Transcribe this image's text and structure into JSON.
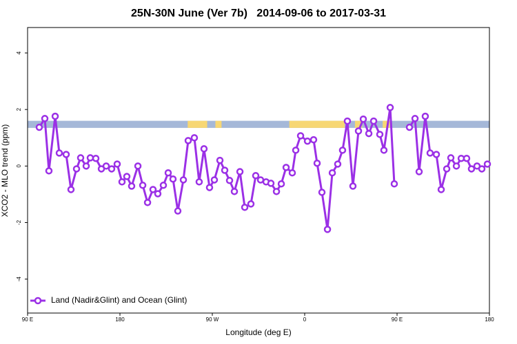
{
  "chart_data": {
    "type": "line",
    "title": "25N-30N June (Ver 7b)   2014-09-06 to 2017-03-31",
    "xlabel": "Longitude (deg E)",
    "ylabel": "XCO2 - MLO trend (ppm)",
    "xlim": [
      90,
      540
    ],
    "ylim": [
      -5.2,
      4.9
    ],
    "xticks": [
      {
        "value": 90,
        "label": "90 E"
      },
      180,
      {
        "value": 270,
        "label": "90 W"
      },
      {
        "value": 360,
        "label": "0"
      },
      {
        "value": 450,
        "label": "90 E"
      },
      {
        "value": 540,
        "label": "180"
      }
    ],
    "yticks": [
      -4,
      -2,
      0,
      2,
      4
    ],
    "legend": "bottom-left",
    "band": {
      "y": [
        1.35,
        1.6
      ],
      "color": "#a5b8d8",
      "highlight_color": "#f7d774",
      "highlights": [
        [
          246,
          265
        ],
        [
          273,
          279
        ],
        [
          345,
          399
        ],
        [
          409,
          416
        ],
        [
          436,
          443
        ]
      ]
    },
    "x": [
      101.4,
      106.8,
      110.8,
      116.9,
      120.9,
      127.6,
      132.3,
      137.7,
      141.7,
      147.1,
      151.1,
      156.5,
      161.9,
      166.6,
      171.9,
      177.3,
      182.0,
      186.7,
      191.4,
      197.5,
      202.2,
      206.9,
      212.2,
      216.9,
      222.3,
      227.0,
      231.7,
      236.4,
      241.8,
      246.5,
      252.5,
      257.2,
      261.9,
      267.3,
      272.0,
      277.4,
      282.1,
      286.8,
      291.5,
      296.9,
      301.6,
      307.6,
      312.3,
      317.0,
      322.4,
      327.1,
      332.5,
      337.2,
      341.9,
      347.9,
      351.3,
      356.0,
      362.7,
      368.7,
      372.1,
      376.8,
      382.2,
      386.9,
      392.2,
      396.9,
      401.6,
      407.0,
      412.4,
      417.1,
      422.5,
      427.2,
      433.2,
      437.2,
      443.3,
      447.3,
      454.7,
      462.1,
      467.5,
      471.5,
      477.5,
      482.2,
      488.3,
      493.0,
      498.4,
      502.4,
      507.8,
      512.5,
      517.8,
      522.5,
      527.9,
      532.6,
      538.0
    ],
    "series": [
      {
        "name": "Land (Nadir&Glint) and Ocean (Glint)",
        "color": "#9b30e6",
        "values": [
          1.37,
          1.68,
          -0.17,
          1.76,
          0.46,
          0.41,
          -0.83,
          -0.1,
          0.29,
          0,
          0.29,
          0.27,
          -0.1,
          0,
          -0.1,
          0.07,
          -0.56,
          -0.37,
          -0.71,
          0,
          -0.68,
          -1.29,
          -0.83,
          -0.98,
          -0.68,
          -0.24,
          -0.46,
          -1.59,
          -0.49,
          0.9,
          1.0,
          -0.56,
          0.61,
          -0.76,
          -0.49,
          0.2,
          -0.15,
          -0.51,
          -0.9,
          -0.2,
          -1.46,
          -1.34,
          -0.34,
          -0.49,
          -0.56,
          -0.61,
          -0.9,
          -0.63,
          -0.05,
          -0.24,
          0.56,
          1.07,
          0.88,
          0.93,
          0.1,
          -0.93,
          -2.24,
          -0.24,
          0.07,
          0.56,
          1.59,
          -0.71,
          1.24,
          1.66,
          1.15,
          1.59,
          1.12,
          0.56,
          2.07,
          -0.63,
          null,
          1.37,
          1.68,
          -0.2,
          1.76,
          0.46,
          0.41,
          -0.83,
          -0.1,
          0.29,
          0,
          0.27,
          0.27,
          -0.1,
          0,
          -0.1,
          0.07
        ]
      }
    ]
  }
}
